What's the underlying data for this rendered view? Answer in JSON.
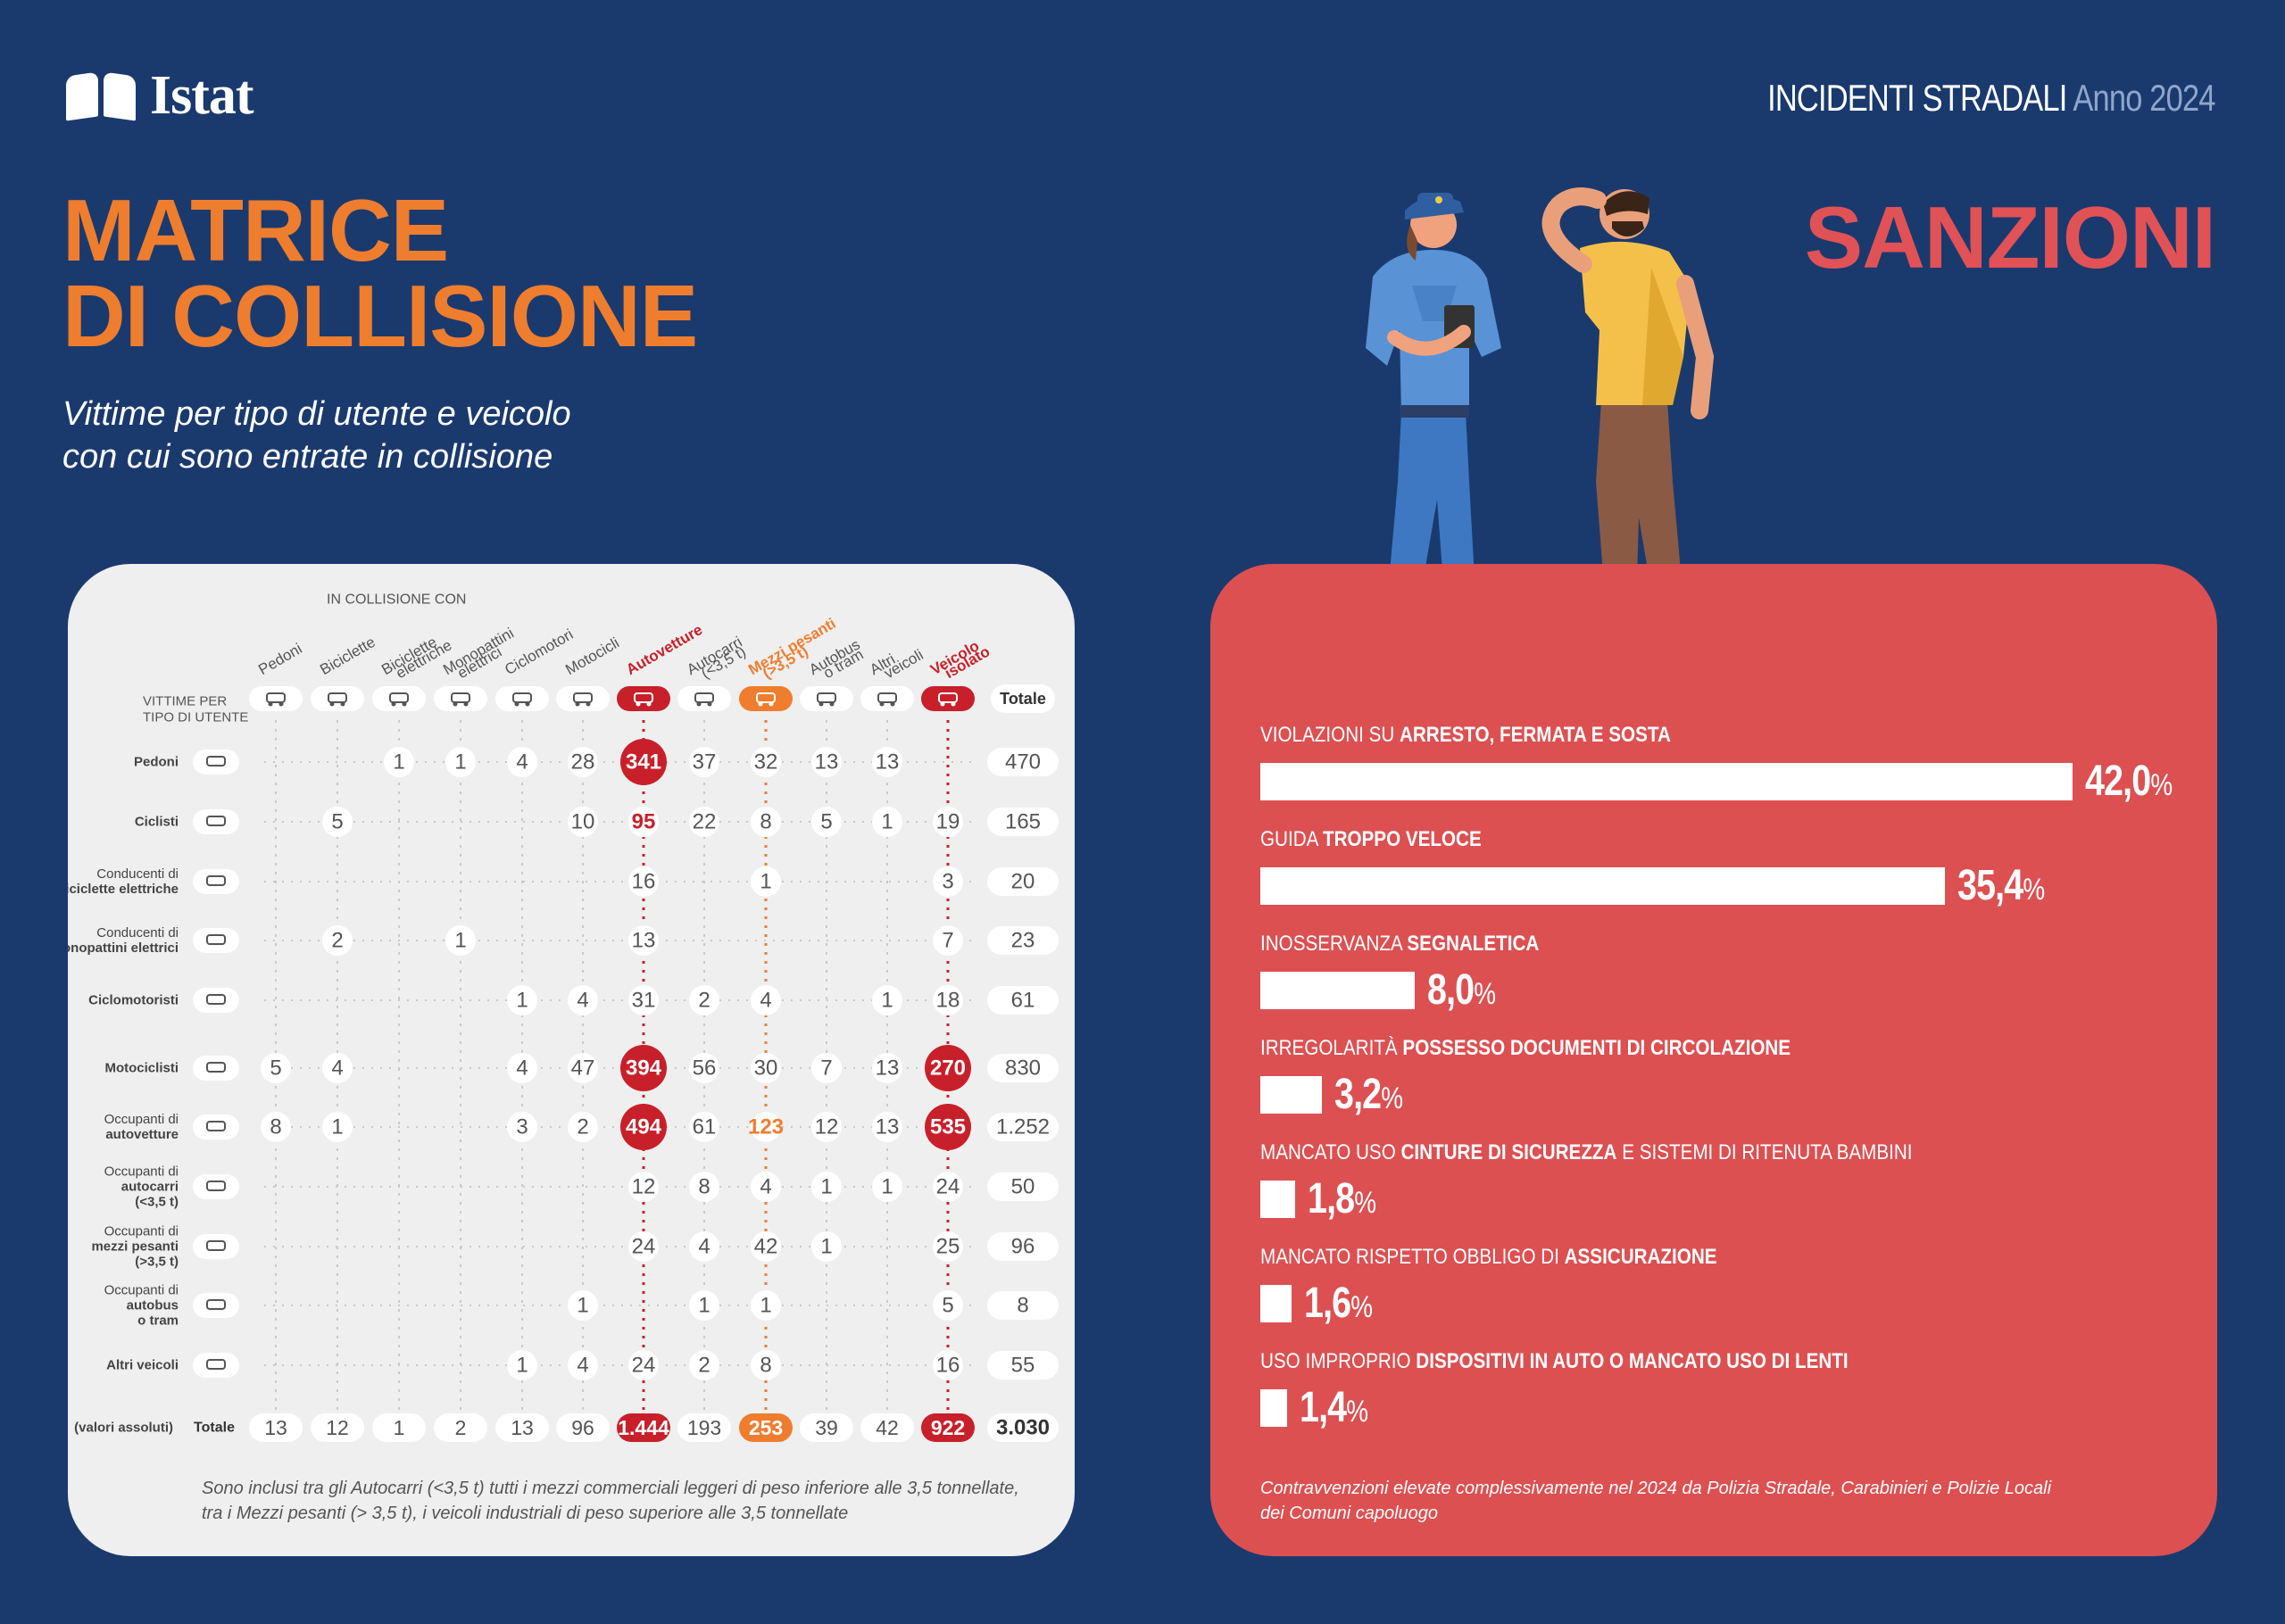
{
  "header": {
    "logo_text": "Istat",
    "report_label": "INCIDENTI STRADALI",
    "report_year": "Anno 2024"
  },
  "left": {
    "title_line1": "MATRICE",
    "title_line2": "DI COLLISIONE",
    "subtitle_line1": "Vittime per tipo di utente e veicolo",
    "subtitle_line2": "con cui sono entrate in collisione",
    "note_line1": "Sono inclusi tra gli Autocarri (<3,5 t) tutti i mezzi commerciali leggeri di peso inferiore alle 3,5 tonnellate,",
    "note_line2": "tra i Mezzi pesanti (> 3,5 t), i veicoli industriali di peso superiore alle 3,5 tonnellate"
  },
  "right": {
    "title": "SANZIONI",
    "note_line1": "Contravvenzioni elevate complessivamente nel 2024 da Polizia Stradale, Carabinieri e Polizie Locali",
    "note_line2": "dei Comuni capoluogo"
  },
  "colors": {
    "background": "#1a3a6e",
    "orange": "#ef7d2e",
    "red": "#c8202a",
    "sanzioni_panel": "#dc5052"
  },
  "chart_data": [
    {
      "type": "table",
      "in_collisione_label": "IN COLLISIONE CON",
      "row_header_label": "VITTIME PER TIPO DI UTENTE",
      "total_label": "Totale",
      "total_row_label": "Totale",
      "total_row_note": "(valori assoluti)",
      "columns": [
        {
          "label": "Pedoni",
          "icon": "pedestrian-icon"
        },
        {
          "label": "Biciclette",
          "icon": "bicycle-icon"
        },
        {
          "label": "Biciclette elettriche",
          "icon": "ebike-icon"
        },
        {
          "label": "Monopattini elettrici",
          "icon": "scooter-icon"
        },
        {
          "label": "Ciclomotori",
          "icon": "moped-icon"
        },
        {
          "label": "Motocicli",
          "icon": "motorcycle-icon"
        },
        {
          "label": "Autovetture",
          "icon": "car-icon",
          "highlight": "red"
        },
        {
          "label": "Autocarri (<3,5 t)",
          "icon": "van-icon"
        },
        {
          "label": "Mezzi pesanti (>3,5 t)",
          "icon": "truck-icon",
          "highlight": "orange"
        },
        {
          "label": "Autobus o tram",
          "icon": "bus-icon"
        },
        {
          "label": "Altri veicoli",
          "icon": "other-vehicle-icon"
        },
        {
          "label": "Veicolo isolato",
          "icon": "road-icon",
          "highlight": "red"
        }
      ],
      "rows": [
        {
          "label": "Pedoni",
          "icon": "pedestrian-icon",
          "values": [
            null,
            null,
            "1",
            "1",
            "4",
            "28",
            "341",
            "37",
            "32",
            "13",
            "13",
            null
          ],
          "total": "470"
        },
        {
          "label": "Ciclisti",
          "icon": "bicycle-icon",
          "values": [
            null,
            "5",
            null,
            null,
            null,
            "10",
            "95",
            "22",
            "8",
            "5",
            "1",
            "19"
          ],
          "total": "165"
        },
        {
          "label": "Conducenti di biciclette elettriche",
          "icon": "ebike-icon",
          "values": [
            null,
            null,
            null,
            null,
            null,
            null,
            "16",
            null,
            "1",
            null,
            null,
            "3"
          ],
          "total": "20"
        },
        {
          "label": "Conducenti di monopattini elettrici",
          "icon": "scooter-icon",
          "values": [
            null,
            "2",
            null,
            "1",
            null,
            null,
            "13",
            null,
            null,
            null,
            null,
            "7"
          ],
          "total": "23"
        },
        {
          "label": "Ciclomotoristi",
          "icon": "moped-icon",
          "values": [
            null,
            null,
            null,
            null,
            "1",
            "4",
            "31",
            "2",
            "4",
            null,
            "1",
            "18"
          ],
          "total": "61"
        },
        {
          "label": "Motociclisti",
          "icon": "motorcycle-icon",
          "values": [
            "5",
            "4",
            null,
            null,
            "4",
            "47",
            "394",
            "56",
            "30",
            "7",
            "13",
            "270"
          ],
          "total": "830"
        },
        {
          "label": "Occupanti di autovetture",
          "icon": "car-icon",
          "values": [
            "8",
            "1",
            null,
            null,
            "3",
            "2",
            "494",
            "61",
            "123",
            "12",
            "13",
            "535"
          ],
          "total": "1.252"
        },
        {
          "label": "Occupanti di autocarri (<3,5 t)",
          "icon": "van-icon",
          "values": [
            null,
            null,
            null,
            null,
            null,
            null,
            "12",
            "8",
            "4",
            "1",
            "1",
            "24"
          ],
          "total": "50"
        },
        {
          "label": "Occupanti di mezzi pesanti (>3,5 t)",
          "icon": "truck-icon",
          "values": [
            null,
            null,
            null,
            null,
            null,
            null,
            "24",
            "4",
            "42",
            "1",
            null,
            "25"
          ],
          "total": "96"
        },
        {
          "label": "Occupanti di autobus o tram",
          "icon": "bus-icon",
          "values": [
            null,
            null,
            null,
            null,
            null,
            "1",
            null,
            "1",
            "1",
            null,
            null,
            "5"
          ],
          "total": "8"
        },
        {
          "label": "Altri veicoli",
          "icon": "other-vehicle-icon",
          "values": [
            null,
            null,
            null,
            null,
            "1",
            "4",
            "24",
            "2",
            "8",
            null,
            null,
            "16"
          ],
          "total": "55"
        }
      ],
      "totals": [
        "13",
        "12",
        "1",
        "2",
        "13",
        "96",
        "1.444",
        "193",
        "253",
        "39",
        "42",
        "922"
      ],
      "grand_total": "3.030"
    },
    {
      "type": "bar",
      "orientation": "horizontal",
      "xlim": [
        0,
        42
      ],
      "items": [
        {
          "label_pre": "VIOLAZIONI SU ",
          "label_bold": "ARRESTO, FERMATA E SOSTA",
          "label_post": "",
          "value": 42.0,
          "value_text": "42,0",
          "unit": "%"
        },
        {
          "label_pre": "GUIDA ",
          "label_bold": "TROPPO VELOCE",
          "label_post": "",
          "value": 35.4,
          "value_text": "35,4",
          "unit": "%"
        },
        {
          "label_pre": "INOSSERVANZA ",
          "label_bold": "SEGNALETICA",
          "label_post": "",
          "value": 8.0,
          "value_text": "8,0",
          "unit": "%"
        },
        {
          "label_pre": "IRREGOLARITÀ ",
          "label_bold": "POSSESSO DOCUMENTI DI CIRCOLAZIONE",
          "label_post": "",
          "value": 3.2,
          "value_text": "3,2",
          "unit": "%"
        },
        {
          "label_pre": "MANCATO USO ",
          "label_bold": "CINTURE DI SICUREZZA",
          "label_post": " E SISTEMI DI RITENUTA BAMBINI",
          "value": 1.8,
          "value_text": "1,8",
          "unit": "%"
        },
        {
          "label_pre": "MANCATO RISPETTO OBBLIGO DI ",
          "label_bold": "ASSICURAZIONE",
          "label_post": "",
          "value": 1.6,
          "value_text": "1,6",
          "unit": "%"
        },
        {
          "label_pre": "USO IMPROPRIO ",
          "label_bold": "DISPOSITIVI IN AUTO O MANCATO USO DI LENTI",
          "label_post": "",
          "value": 1.4,
          "value_text": "1,4",
          "unit": "%"
        }
      ]
    }
  ]
}
